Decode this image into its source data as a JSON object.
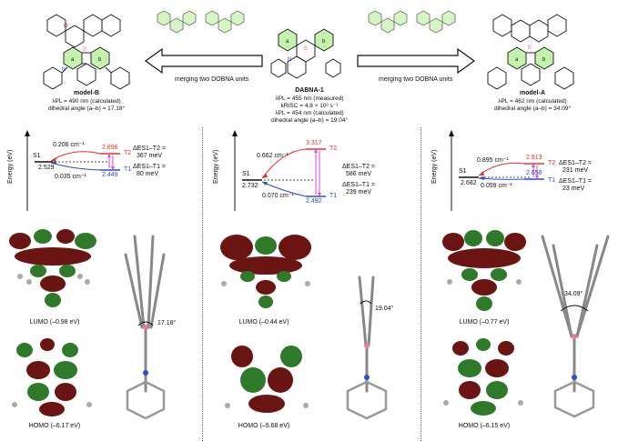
{
  "header": {
    "left": {
      "name": "model-B",
      "line1": "λPL = 490 nm (calculated)",
      "line2": "dihedral angle (a–b) = 17.18°"
    },
    "center": {
      "name": "DABNA-1",
      "line1": "λPL = 455 nm (measured)",
      "line2": "kRISC = 4.8 × 10³ s⁻¹",
      "line3": "λPL = 454 nm (calculated)",
      "line4": "dihedral angle (a–b) = 19.04°"
    },
    "right": {
      "name": "model-A",
      "line1": "λPL = 462 nm (calculated)",
      "line2": "dihedral angle (a–b) = 34.09°"
    },
    "arrow_left_label": "merging two DOBNA units",
    "arrow_right_label": "merging two DOBNA units"
  },
  "energy_panels": [
    {
      "axis_label": "Energy (eV)",
      "s1_label": "S1",
      "s1_value": "2.529",
      "t1_label": "T1",
      "t1_value": "2.449",
      "t2_label": "T2",
      "t2_value": "2.896",
      "soc_upper": "0.206 cm⁻¹",
      "soc_lower": "0.035 cm⁻¹",
      "de_s1t2_label": "ΔES1–T2 =",
      "de_s1t2_value": "367 meV",
      "de_s1t1_label": "ΔES1–T1 =",
      "de_s1t1_value": "80 meV"
    },
    {
      "axis_label": "Energy (eV)",
      "s1_label": "S1",
      "s1_value": "2.732",
      "t1_label": "T1",
      "t1_value": "2.492",
      "t2_label": "T2",
      "t2_value": "3.317",
      "soc_upper": "0.662 cm⁻¹",
      "soc_lower": "0.070 cm⁻¹",
      "de_s1t2_label": "ΔES1–T2 =",
      "de_s1t2_value": "586 meV",
      "de_s1t1_label": "ΔES1–T1 =",
      "de_s1t1_value": "239 meV"
    },
    {
      "axis_label": "Energy (eV)",
      "s1_label": "S1",
      "s1_value": "2.682",
      "t1_label": "T1",
      "t1_value": "2.658",
      "t2_label": "T2",
      "t2_value": "2.913",
      "soc_upper": "0.895 cm⁻¹",
      "soc_lower": "0.059 cm⁻¹",
      "de_s1t2_label": "ΔES1–T2 =",
      "de_s1t2_value": "231 meV",
      "de_s1t1_label": "ΔES1–T1 =",
      "de_s1t1_value": "23 meV"
    }
  ],
  "orbitals": [
    {
      "lumo": "LUMO (–0.98 eV)",
      "homo": "HOMO (–6.17 eV)",
      "angle": "17.18°"
    },
    {
      "lumo": "LUMO (–0.44 eV)",
      "homo": "HOMO (–5.68 eV)",
      "angle": "19.04°"
    },
    {
      "lumo": "LUMO (–0.77 eV)",
      "homo": "HOMO (–6.15 eV)",
      "angle": "34.09°"
    }
  ],
  "atom_labels": {
    "a": "a",
    "b": "b",
    "B": "B",
    "N": "N",
    "O": "O"
  },
  "colors": {
    "lobe_red": "#6b1414",
    "lobe_green": "#2f7a2a",
    "t2_red": "#e8302a",
    "t1_blue": "#2a4fd0",
    "arrow_magenta": "#e040e0",
    "ring_green": "#9be07a",
    "boron_pink": "#e87aa0",
    "nitrogen_blue": "#2a4fd0",
    "oxygen_red": "#cc2020"
  }
}
